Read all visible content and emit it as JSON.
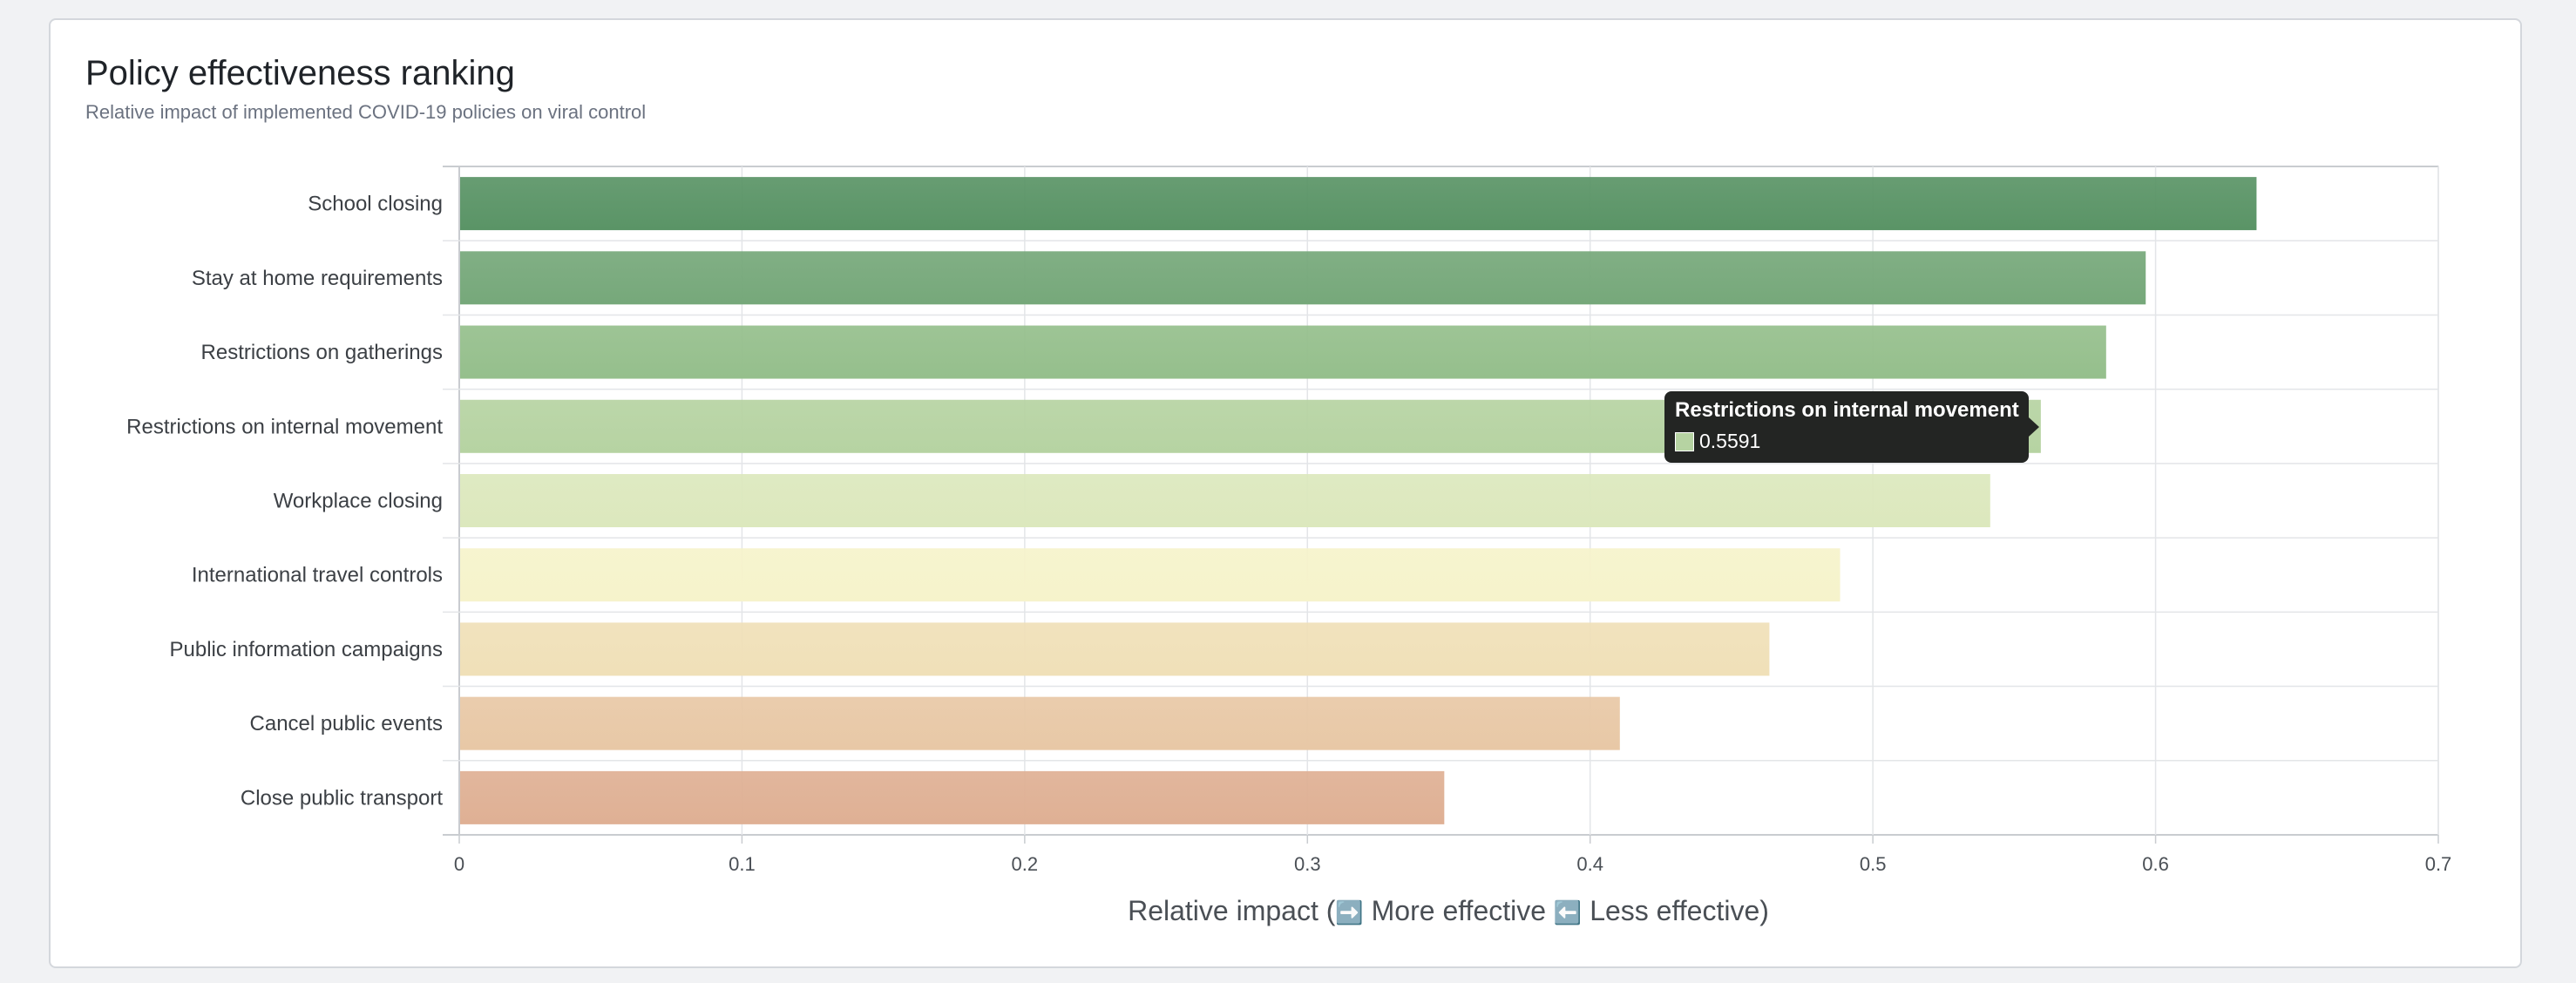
{
  "header": {
    "title": "Policy effectiveness ranking",
    "subtitle": "Relative impact of implemented COVID-19 policies on viral control"
  },
  "chart_data": {
    "type": "bar",
    "orientation": "horizontal",
    "categories": [
      "School closing",
      "Stay at home requirements",
      "Restrictions on gatherings",
      "Restrictions on internal movement",
      "Workplace closing",
      "International travel controls",
      "Public information campaigns",
      "Cancel public events",
      "Close public transport"
    ],
    "values": [
      0.6354,
      0.5962,
      0.5822,
      0.5591,
      0.5412,
      0.4881,
      0.4631,
      0.4102,
      0.3481
    ],
    "colors": [
      "#5a9466",
      "#76a87a",
      "#95bf8c",
      "#b6d3a2",
      "#dce8bd",
      "#f6f3cb",
      "#f0e0b8",
      "#e8c8a6",
      "#dfb094"
    ],
    "xlim": [
      0,
      0.7
    ],
    "xticks": [
      0,
      0.1,
      0.2,
      0.3,
      0.4,
      0.5,
      0.6,
      0.7
    ],
    "tick_labels": [
      "0",
      "0.1",
      "0.2",
      "0.3",
      "0.4",
      "0.5",
      "0.6",
      "0.7"
    ],
    "xlabel": {
      "before": "Relative impact (",
      "more_icon": "➡️",
      "more_text": " More effective ",
      "less_icon": "⬅️",
      "less_text": " Less effective)"
    },
    "grid": true,
    "legend": "none"
  },
  "tooltip": {
    "title": "Restrictions on internal movement",
    "value": "0.5591",
    "swatch_color": "#b6d3a2"
  }
}
